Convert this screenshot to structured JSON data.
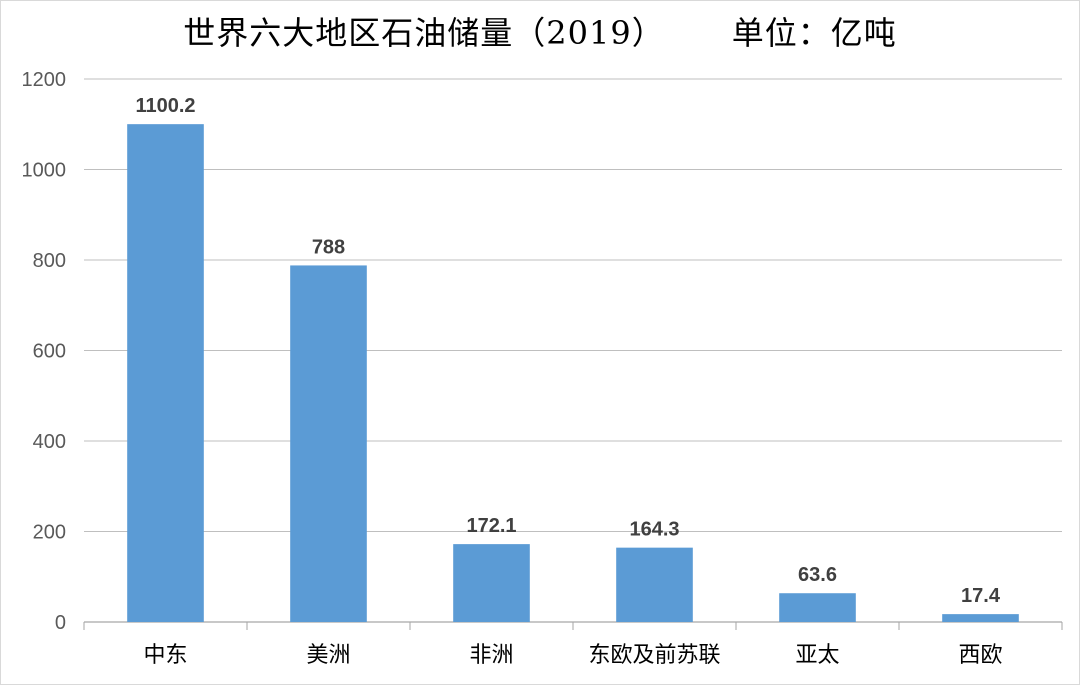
{
  "chart_data": {
    "type": "bar",
    "title": "世界六大地区石油储量（2019）      单位：亿吨",
    "categories": [
      "中东",
      "美洲",
      "非洲",
      "东欧及前苏联",
      "亚太",
      "西欧"
    ],
    "values": [
      1100.2,
      788,
      172.1,
      164.3,
      63.6,
      17.4
    ],
    "data_labels": [
      "1100.2",
      "788",
      "172.1",
      "164.3",
      "63.6",
      "17.4"
    ],
    "y_ticks": [
      "0",
      "200",
      "400",
      "600",
      "800",
      "1000",
      "1200"
    ],
    "ylim": [
      0,
      1200
    ],
    "grid": true,
    "legend": "none",
    "bar_color": "#5b9bd5",
    "grid_color": "#bfbfbf"
  }
}
